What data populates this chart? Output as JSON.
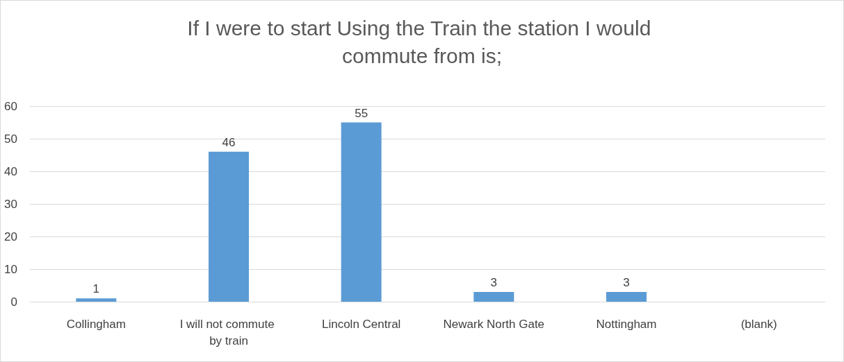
{
  "chart_data": {
    "type": "bar",
    "title": "If I were to start Using the Train the station I would commute from is;",
    "categories": [
      "Collingham",
      "I will not commute by train",
      "Lincoln Central",
      "Newark North Gate",
      "Nottingham",
      "(blank)"
    ],
    "values": [
      1,
      46,
      55,
      3,
      3,
      null
    ],
    "color": "#5b9bd5",
    "ylim": [
      0,
      60
    ],
    "yticks": [
      0,
      10,
      20,
      30,
      40,
      50,
      60
    ],
    "grid": "y",
    "data_labels": true
  }
}
